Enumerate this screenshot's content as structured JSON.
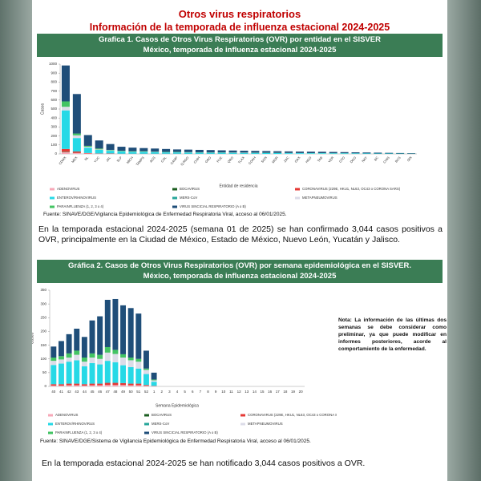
{
  "header": {
    "title": "Otros virus respiratorios",
    "subtitle": "Información de la temporada de influenza estacional 2024-2025"
  },
  "paragraphs": [
    "En la temporada estacional 2024-2025 (semana 01 de 2025) se han confirmado 3,044 casos positivos a OVR, principalmente en la Ciudad de México, Estado de México, Nuevo León, Yucatán y Jalisco.",
    "En la temporada estacional 2024-2025 se han notificado 3,044 casos positivos a OVR."
  ],
  "note": "Nota: La información de las últimas dos semanas se debe considerar como preliminar, ya que puede modificar en informes posteriores, acorde al comportamiento de la enfermedad.",
  "chart_data": [
    {
      "type": "stacked_bar",
      "title": "Grafica 1. Casos de Otros Virus Respiratorios (OVR) por entidad en el SISVER",
      "subtitle": "México, temporada de influenza estacional 2024-2025",
      "x_label": "Entidad de residencia",
      "y_label": "Casos",
      "source": "Fuente: SINAVE/DGE/Vigilancia Epidemiológica de Enfermedad Respiratoria Viral, acceso al 06/01/2025.",
      "categories": [
        "CDMX",
        "MEX",
        "NL",
        "YUC",
        "JAL",
        "SLP",
        "MICH",
        "TAMPS",
        "AGS",
        "COL",
        "CAMP",
        "Q.ROO",
        "CHIH",
        "GRO",
        "PUE",
        "QRO",
        "TLAX",
        "COAH",
        "SON",
        "MOR",
        "ZAC",
        "OAX",
        "HGO",
        "TAB",
        "VER",
        "GTO",
        "DGO",
        "NAY",
        "BC",
        "CHIS",
        "BCS",
        "SIN"
      ],
      "series": [
        {
          "name": "ADENOVIRUS",
          "color": "#f7a8b8",
          "values": [
            20,
            10,
            5,
            3,
            2,
            1,
            1,
            1,
            1,
            1,
            1,
            0,
            0,
            0,
            0,
            0,
            0,
            0,
            0,
            0,
            0,
            0,
            0,
            0,
            0,
            0,
            0,
            0,
            0,
            0,
            0,
            0
          ]
        },
        {
          "name": "BOCAVIRUS",
          "color": "#1b5e20",
          "values": [
            5,
            2,
            0,
            0,
            0,
            0,
            0,
            0,
            0,
            0,
            0,
            0,
            0,
            0,
            0,
            0,
            0,
            0,
            0,
            0,
            0,
            0,
            0,
            0,
            0,
            0,
            0,
            0,
            0,
            0,
            0,
            0
          ]
        },
        {
          "name": "CORONAVIRUS (229E, HKU1, NL63, OC43 o CORONA SARS)",
          "color": "#e53935",
          "values": [
            30,
            15,
            5,
            2,
            3,
            1,
            1,
            1,
            1,
            1,
            1,
            1,
            1,
            1,
            1,
            1,
            1,
            1,
            0,
            0,
            0,
            0,
            0,
            0,
            0,
            0,
            0,
            0,
            0,
            0,
            0,
            0
          ]
        },
        {
          "name": "ENTEROV/RHINOVIRUS",
          "color": "#26d9e6",
          "values": [
            430,
            150,
            60,
            40,
            30,
            25,
            20,
            20,
            18,
            15,
            15,
            14,
            13,
            12,
            12,
            11,
            10,
            10,
            10,
            9,
            8,
            8,
            7,
            7,
            6,
            6,
            5,
            5,
            4,
            4,
            3,
            2
          ]
        },
        {
          "name": "MERS-CoV",
          "color": "#26a69a",
          "values": [
            0,
            0,
            0,
            0,
            0,
            0,
            0,
            0,
            0,
            0,
            0,
            0,
            0,
            0,
            0,
            0,
            0,
            0,
            0,
            0,
            0,
            0,
            0,
            0,
            0,
            0,
            0,
            0,
            0,
            0,
            0,
            0
          ]
        },
        {
          "name": "METAPNEUMOVIRUS",
          "color": "#dcdce8",
          "values": [
            40,
            30,
            10,
            5,
            5,
            3,
            3,
            3,
            2,
            2,
            2,
            2,
            2,
            2,
            2,
            2,
            2,
            1,
            1,
            1,
            1,
            1,
            1,
            1,
            1,
            1,
            1,
            0,
            0,
            0,
            0,
            0
          ]
        },
        {
          "name": "PARAINFLUENZA (1, 2, 3 o 4)",
          "color": "#43c463",
          "values": [
            60,
            20,
            10,
            10,
            5,
            5,
            5,
            5,
            3,
            3,
            3,
            3,
            2,
            2,
            2,
            2,
            2,
            2,
            2,
            2,
            2,
            1,
            1,
            1,
            1,
            1,
            1,
            1,
            1,
            1,
            1,
            1
          ]
        },
        {
          "name": "VIRUS SINCICIAL RESPIRATORIO (A o B)",
          "color": "#1f4e79",
          "values": [
            400,
            440,
            120,
            90,
            65,
            45,
            40,
            35,
            35,
            33,
            28,
            28,
            27,
            26,
            23,
            22,
            21,
            20,
            19,
            18,
            17,
            16,
            16,
            15,
            14,
            12,
            11,
            10,
            9,
            7,
            6,
            5
          ]
        }
      ],
      "ylim": [
        0,
        1000
      ],
      "yticks": [
        0,
        100,
        200,
        300,
        400,
        500,
        600,
        700,
        800,
        900,
        1000
      ]
    },
    {
      "type": "stacked_bar",
      "title": "Gráfica 2. Casos de Otros Virus Respiratorios (OVR) por semana epidemiológica en el SISVER.",
      "subtitle": "México, temporada de influenza estacional 2024-2025",
      "x_label": "Semana Epidemiológica",
      "y_label": "Casos",
      "source": "Fuente: SINAVE/DGE/Sistema de Vigilancia Epidemiológica de Enfermedad Respiratoria Viral, acceso al 06/01/2025.",
      "categories": [
        "40",
        "41",
        "42",
        "43",
        "44",
        "45",
        "46",
        "47",
        "48",
        "49",
        "50",
        "51",
        "52",
        "1",
        "2",
        "3",
        "4",
        "5",
        "6",
        "7",
        "8",
        "9",
        "10",
        "11",
        "12",
        "13",
        "14",
        "15",
        "16",
        "17",
        "18",
        "19",
        "20"
      ],
      "series": [
        {
          "name": "ADENOVIRUS",
          "color": "#f7a8b8",
          "values": [
            3,
            3,
            4,
            4,
            3,
            4,
            4,
            5,
            5,
            5,
            4,
            4,
            2,
            1,
            null,
            null,
            null,
            null,
            null,
            null,
            null,
            null,
            null,
            null,
            null,
            null,
            null,
            null,
            null,
            null,
            null,
            null,
            null
          ]
        },
        {
          "name": "BOCAVIRUS",
          "color": "#1b5e20",
          "values": [
            0,
            0,
            0,
            0,
            0,
            0,
            0,
            0,
            0,
            0,
            0,
            0,
            0,
            0,
            null,
            null,
            null,
            null,
            null,
            null,
            null,
            null,
            null,
            null,
            null,
            null,
            null,
            null,
            null,
            null,
            null,
            null,
            null
          ]
        },
        {
          "name": "CORONAVIRUS (229E, HKU1, NL63, OC43 o CORONA SARS)",
          "color": "#e53935",
          "values": [
            5,
            5,
            6,
            6,
            5,
            6,
            6,
            8,
            8,
            7,
            6,
            6,
            3,
            1,
            null,
            null,
            null,
            null,
            null,
            null,
            null,
            null,
            null,
            null,
            null,
            null,
            null,
            null,
            null,
            null,
            null,
            null,
            null
          ]
        },
        {
          "name": "ENTEROV/RHINOVIRUS",
          "color": "#26d9e6",
          "values": [
            70,
            75,
            80,
            85,
            65,
            75,
            70,
            80,
            75,
            65,
            60,
            55,
            40,
            15,
            null,
            null,
            null,
            null,
            null,
            null,
            null,
            null,
            null,
            null,
            null,
            null,
            null,
            null,
            null,
            null,
            null,
            null,
            null
          ]
        },
        {
          "name": "MERS-CoV",
          "color": "#26a69a",
          "values": [
            0,
            0,
            0,
            0,
            0,
            0,
            0,
            0,
            0,
            0,
            0,
            0,
            0,
            0,
            null,
            null,
            null,
            null,
            null,
            null,
            null,
            null,
            null,
            null,
            null,
            null,
            null,
            null,
            null,
            null,
            null,
            null,
            null
          ]
        },
        {
          "name": "METAPNEUMOVIRUS",
          "color": "#dcdce8",
          "values": [
            15,
            15,
            15,
            20,
            17,
            20,
            20,
            30,
            30,
            28,
            25,
            25,
            15,
            5,
            null,
            null,
            null,
            null,
            null,
            null,
            null,
            null,
            null,
            null,
            null,
            null,
            null,
            null,
            null,
            null,
            null,
            null,
            null
          ]
        },
        {
          "name": "PARAINFLUENZA (1, 2, 3 o 4)",
          "color": "#43c463",
          "values": [
            12,
            12,
            15,
            15,
            15,
            15,
            15,
            20,
            15,
            12,
            10,
            10,
            5,
            3,
            null,
            null,
            null,
            null,
            null,
            null,
            null,
            null,
            null,
            null,
            null,
            null,
            null,
            null,
            null,
            null,
            null,
            null,
            null
          ]
        },
        {
          "name": "VIRUS SINCICIAL RESPIRATORIO (A o B)",
          "color": "#1f4e79",
          "values": [
            40,
            55,
            70,
            80,
            75,
            120,
            140,
            172,
            185,
            178,
            180,
            165,
            65,
            25,
            null,
            null,
            null,
            null,
            null,
            null,
            null,
            null,
            null,
            null,
            null,
            null,
            null,
            null,
            null,
            null,
            null,
            null,
            null
          ]
        }
      ],
      "ylim": [
        0,
        350
      ],
      "yticks": [
        0,
        50,
        100,
        150,
        200,
        250,
        300,
        350
      ]
    }
  ]
}
